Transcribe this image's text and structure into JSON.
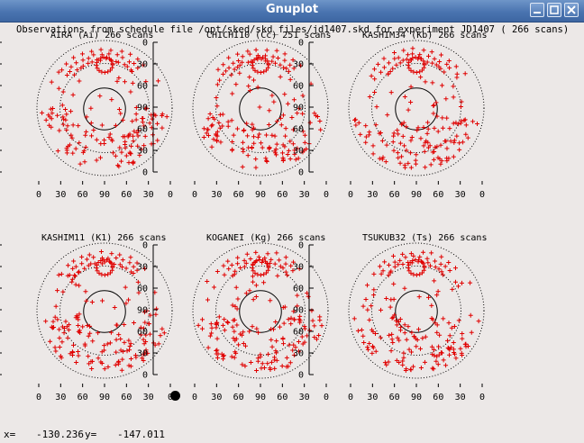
{
  "window": {
    "title": "Gnuplot",
    "buttons": [
      "minimize",
      "maximize",
      "close"
    ]
  },
  "plot": {
    "header": "Observations from schedule file /opt/sked/skd_files/jd1407.skd for experiment JD1407    (   266 scans)",
    "elevation_ticks": [
      "0",
      "30",
      "60",
      "90",
      "60",
      "30",
      "0"
    ],
    "axis_ticks": [
      "0",
      "30",
      "60",
      "90",
      "60",
      "30",
      "0"
    ],
    "colors": {
      "points": "#e00000",
      "rings": "#000000",
      "background": "#ece8e7"
    },
    "stations": [
      {
        "label": "AIRA (Ai)",
        "scans": "266 scans"
      },
      {
        "label": "CHICHI10 (Cc)",
        "scans": "251 scans"
      },
      {
        "label": "KASHIM34 (Kb)",
        "scans": "266 scans"
      },
      {
        "label": "KASHIM11 (K1)",
        "scans": "266 scans"
      },
      {
        "label": "KOGANEI (Kg)",
        "scans": "266 scans"
      },
      {
        "label": "TSUKUB32 (Ts)",
        "scans": "266 scans"
      }
    ]
  },
  "status": {
    "x_label": "x=",
    "x_value": "-130.236",
    "y_label": "y=",
    "y_value": "-147.011"
  }
}
